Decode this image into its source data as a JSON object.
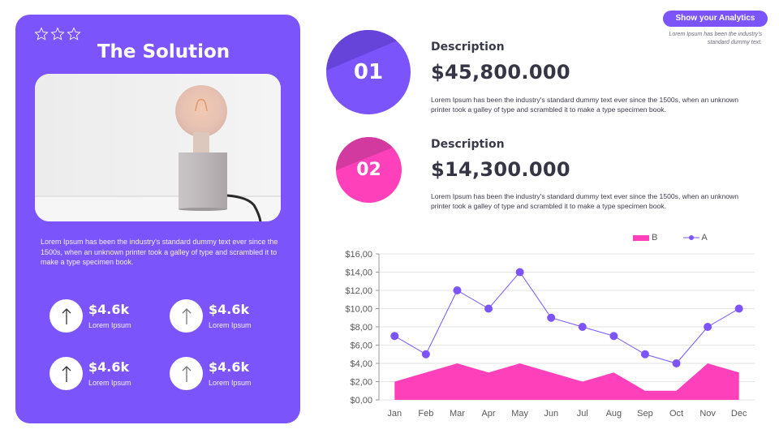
{
  "card": {
    "stars": 3,
    "title": "The Solution",
    "image_alt": "lightbulb-on-concrete-lamp-base",
    "text": "Lorem Ipsum has been the industry's standard dummy text ever since the 1500s, when an unknown printer took a galley of type and scrambled it to make a type specimen book.",
    "stats": [
      {
        "value": "$4.6k",
        "label": "Lorem Ipsum",
        "icon": "arrow-up-icon"
      },
      {
        "value": "$4.6k",
        "label": "Lorem Ipsum",
        "icon": "arrow-up-icon"
      },
      {
        "value": "$4.6k",
        "label": "Lorem Ipsum",
        "icon": "arrow-up-icon"
      },
      {
        "value": "$4.6k",
        "label": "Lorem Ipsum",
        "icon": "arrow-up-icon"
      }
    ]
  },
  "header": {
    "button_label": "Show your Analytics",
    "note": "Lorem Ipsum has been the industry's standard dummy text."
  },
  "items": [
    {
      "number": "01",
      "label": "Description",
      "amount": "$45,800.000",
      "text": "Lorem Ipsum has been the industry's standard dummy text ever since the 1500s, when an unknown printer took a galley of type and scrambled it to make a type specimen book.",
      "color": "#7b55fb",
      "shade": "#6644d9"
    },
    {
      "number": "02",
      "label": "Description",
      "amount": "$14,300.000",
      "text": "Lorem Ipsum has been the industry's standard dummy text ever since the 1500s, when an unknown printer took a galley of type and scrambled it to make a type specimen book.",
      "color": "#ff40bb",
      "shade": "#d23a9f"
    }
  ],
  "colors": {
    "purple": "#7b55fb",
    "pink": "#ff40bb",
    "text_dark": "#363545"
  },
  "chart_data": {
    "type": "line",
    "title": "",
    "xlabel": "",
    "ylabel": "",
    "categories": [
      "Jan",
      "Feb",
      "Mar",
      "Apr",
      "May",
      "Jun",
      "Jul",
      "Aug",
      "Sep",
      "Oct",
      "Nov",
      "Dec"
    ],
    "series": [
      {
        "name": "B",
        "type": "area",
        "color": "#ff40bb",
        "values": [
          2,
          3,
          4,
          3,
          4,
          3,
          2,
          3,
          1,
          1,
          4,
          3
        ]
      },
      {
        "name": "A",
        "type": "line",
        "color": "#7b55fb",
        "values": [
          7,
          5,
          12,
          10,
          14,
          9,
          8,
          7,
          5,
          4,
          8,
          10
        ]
      }
    ],
    "y_ticks": [
      "$0,00",
      "$2,00",
      "$4,00",
      "$6,00",
      "$8,00",
      "$10,00",
      "$12,00",
      "$14,00",
      "$16,00"
    ],
    "ylim": [
      0,
      16
    ],
    "grid": true,
    "legend": {
      "position": "top-right",
      "entries": [
        "B",
        "A"
      ]
    }
  }
}
